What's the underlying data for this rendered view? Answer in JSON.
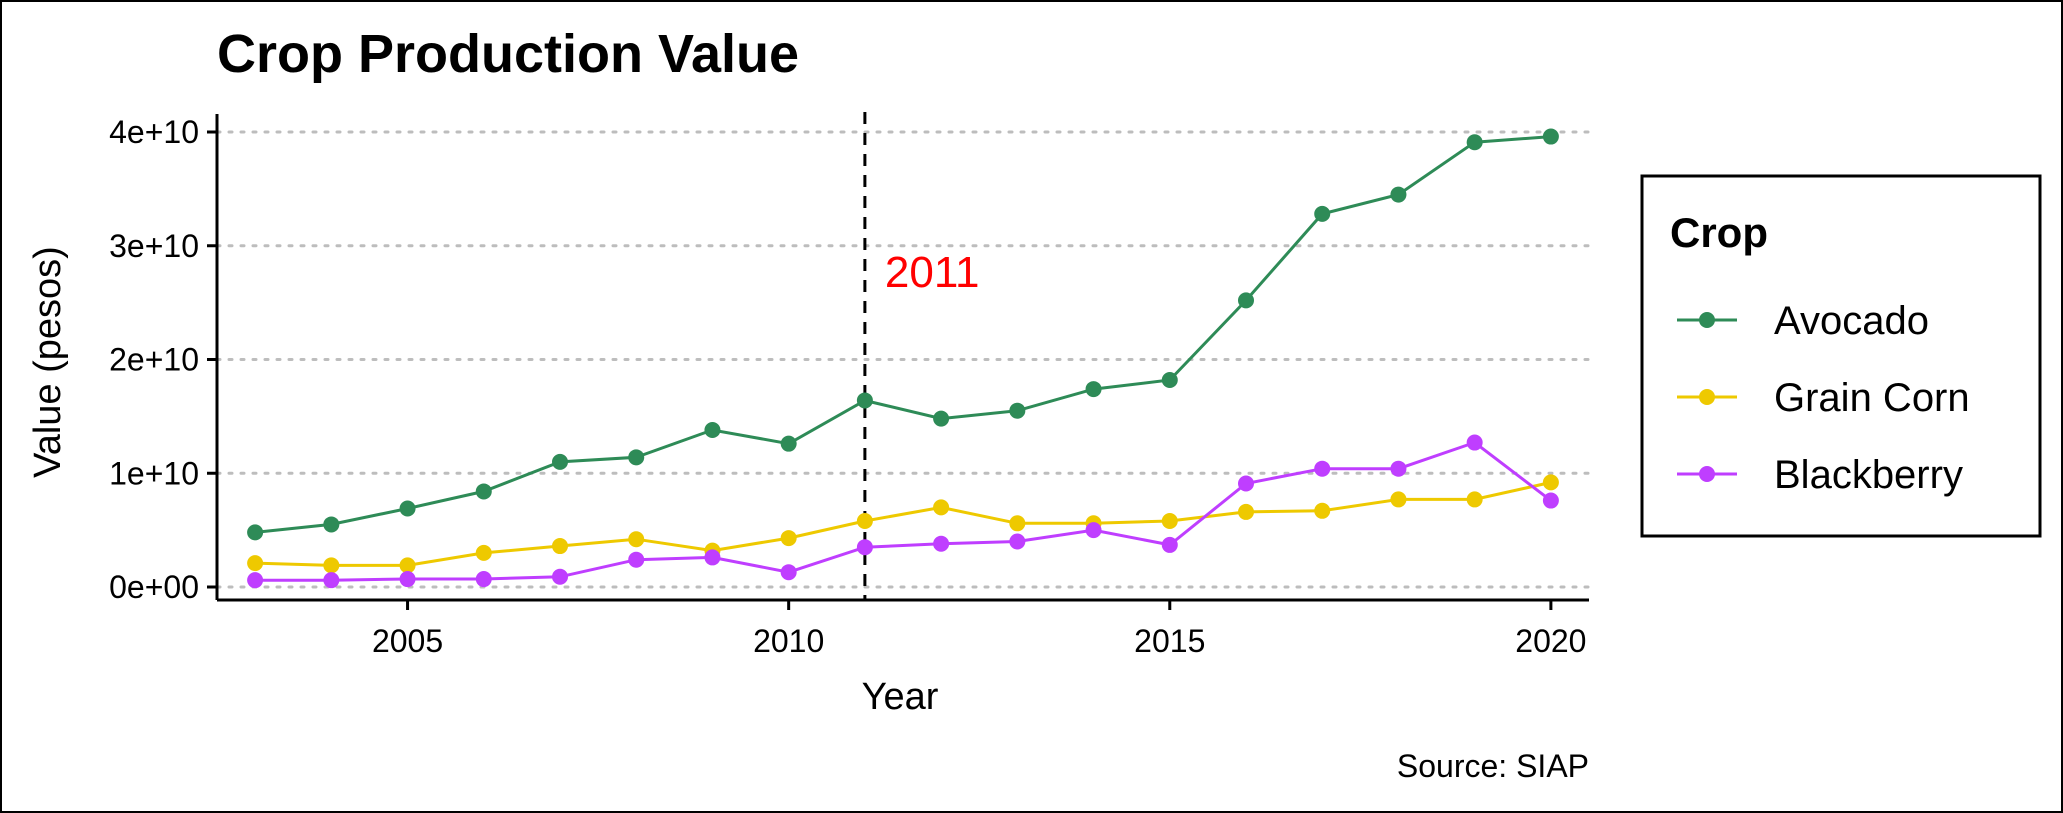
{
  "chart_data": {
    "type": "line",
    "title": "Crop Production Value",
    "xlabel": "Year",
    "ylabel": "Value (pesos)",
    "caption": "Source: SIAP",
    "xlim": [
      2002.5,
      2020.5
    ],
    "ylim": [
      0,
      40000000000
    ],
    "x_ticks": [
      2005,
      2010,
      2015,
      2020
    ],
    "y_ticks": [
      {
        "value": 0,
        "label": "0e+00"
      },
      {
        "value": 10000000000,
        "label": "1e+10"
      },
      {
        "value": 20000000000,
        "label": "2e+10"
      },
      {
        "value": 30000000000,
        "label": "3e+10"
      },
      {
        "value": 40000000000,
        "label": "4e+10"
      }
    ],
    "grid": "horizontal dotted",
    "legend": {
      "title": "Crop",
      "position": "right"
    },
    "x": [
      2003,
      2004,
      2005,
      2006,
      2007,
      2008,
      2009,
      2010,
      2011,
      2012,
      2013,
      2014,
      2015,
      2016,
      2017,
      2018,
      2019,
      2020
    ],
    "series": [
      {
        "name": "Avocado",
        "color": "#2e8b57",
        "values": [
          4800000000.0,
          5500000000.0,
          6900000000.0,
          8400000000.0,
          11000000000.0,
          11400000000.0,
          13800000000.0,
          12600000000.0,
          16400000000.0,
          14800000000.0,
          15500000000.0,
          17400000000.0,
          18200000000.0,
          25200000000.0,
          32800000000.0,
          34500000000.0,
          39100000000.0,
          39600000000.0
        ]
      },
      {
        "name": "Grain Corn",
        "color": "#eec900",
        "values": [
          2100000000.0,
          1900000000.0,
          1900000000.0,
          3000000000.0,
          3600000000.0,
          4200000000.0,
          3200000000.0,
          4300000000.0,
          5800000000.0,
          7000000000.0,
          5600000000.0,
          5600000000.0,
          5800000000.0,
          6600000000.0,
          6700000000.0,
          7700000000.0,
          7700000000.0,
          9200000000.0
        ]
      },
      {
        "name": "Blackberry",
        "color": "#bf3eff",
        "values": [
          600000000.0,
          600000000.0,
          700000000.0,
          700000000.0,
          900000000.0,
          2400000000.0,
          2600000000.0,
          1300000000.0,
          3500000000.0,
          3800000000.0,
          4000000000.0,
          5000000000.0,
          3700000000.0,
          9100000000.0,
          10400000000.0,
          10400000000.0,
          12700000000.0,
          7600000000.0
        ]
      }
    ],
    "reference_line": {
      "x": 2011,
      "label": "2011",
      "label_color": "#ff0000",
      "style": "dashed"
    }
  }
}
